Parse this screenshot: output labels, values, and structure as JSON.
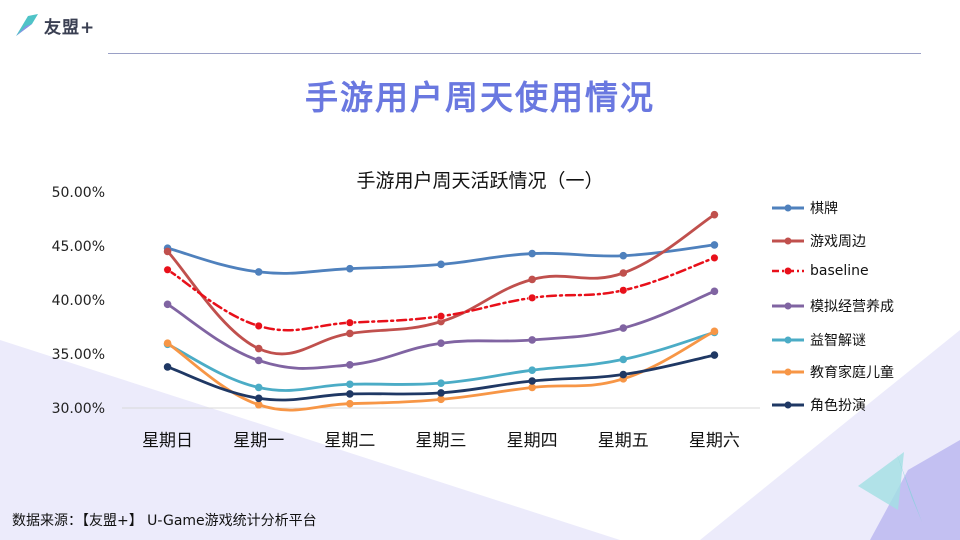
{
  "brand": {
    "name": "友盟+"
  },
  "page": {
    "title": "手游用户周天使用情况"
  },
  "source": {
    "text": "数据来源：【友盟+】 U-Game游戏统计分析平台"
  },
  "colors": {
    "accent": "#6a78e0",
    "bg_shape": "#ecebfb",
    "logo_teal": "#4fc3c7"
  },
  "chart_data": {
    "type": "line",
    "title": "手游用户周天活跃情况（一）",
    "xlabel": "",
    "ylabel": "",
    "categories": [
      "星期日",
      "星期一",
      "星期二",
      "星期三",
      "星期四",
      "星期五",
      "星期六"
    ],
    "yticks": [
      "30.00%",
      "35.00%",
      "40.00%",
      "45.00%",
      "50.00%"
    ],
    "ylim": [
      30,
      50
    ],
    "grid": false,
    "legend_position": "right",
    "series": [
      {
        "name": "棋牌",
        "color": "#4f81bd",
        "dash": false,
        "values": [
          44.8,
          42.6,
          42.9,
          43.3,
          44.3,
          44.1,
          45.1
        ]
      },
      {
        "name": "游戏周边",
        "color": "#c0504d",
        "dash": false,
        "values": [
          44.5,
          35.5,
          36.9,
          38.0,
          41.9,
          42.5,
          47.9
        ]
      },
      {
        "name": "baseline",
        "color": "#e8101a",
        "dash": true,
        "values": [
          42.8,
          37.6,
          37.9,
          38.5,
          40.2,
          40.9,
          43.9
        ]
      },
      {
        "name": "模拟经营养成",
        "color": "#8064a2",
        "dash": false,
        "values": [
          39.6,
          34.4,
          34.0,
          36.0,
          36.3,
          37.4,
          40.8
        ]
      },
      {
        "name": "益智解谜",
        "color": "#4bacc6",
        "dash": false,
        "values": [
          35.9,
          31.9,
          32.2,
          32.3,
          33.5,
          34.5,
          37.0
        ]
      },
      {
        "name": "教育家庭儿童",
        "color": "#f79646",
        "dash": false,
        "values": [
          36.0,
          30.3,
          30.4,
          30.8,
          31.9,
          32.7,
          37.1
        ]
      },
      {
        "name": "角色扮演",
        "color": "#1f3864",
        "dash": false,
        "values": [
          33.8,
          30.9,
          31.3,
          31.4,
          32.5,
          33.1,
          34.9
        ]
      }
    ]
  }
}
